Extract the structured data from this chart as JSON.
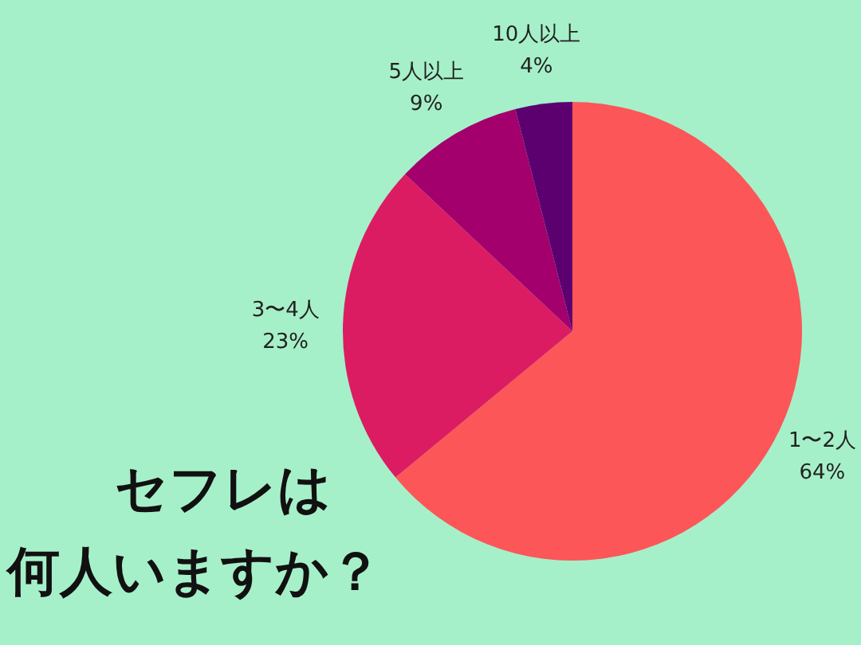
{
  "chart_data": {
    "type": "pie",
    "title": "セフレは",
    "subtitle": "何人いますか？",
    "categories": [
      "1〜2人",
      "3〜4人",
      "5人以上",
      "10人以上"
    ],
    "values": [
      64,
      23,
      9,
      4
    ],
    "value_labels": [
      "64%",
      "23%",
      "9%",
      "4%"
    ],
    "colors": [
      "#fc5659",
      "#dc1c62",
      "#a3006e",
      "#5c0070"
    ],
    "legend": false
  }
}
